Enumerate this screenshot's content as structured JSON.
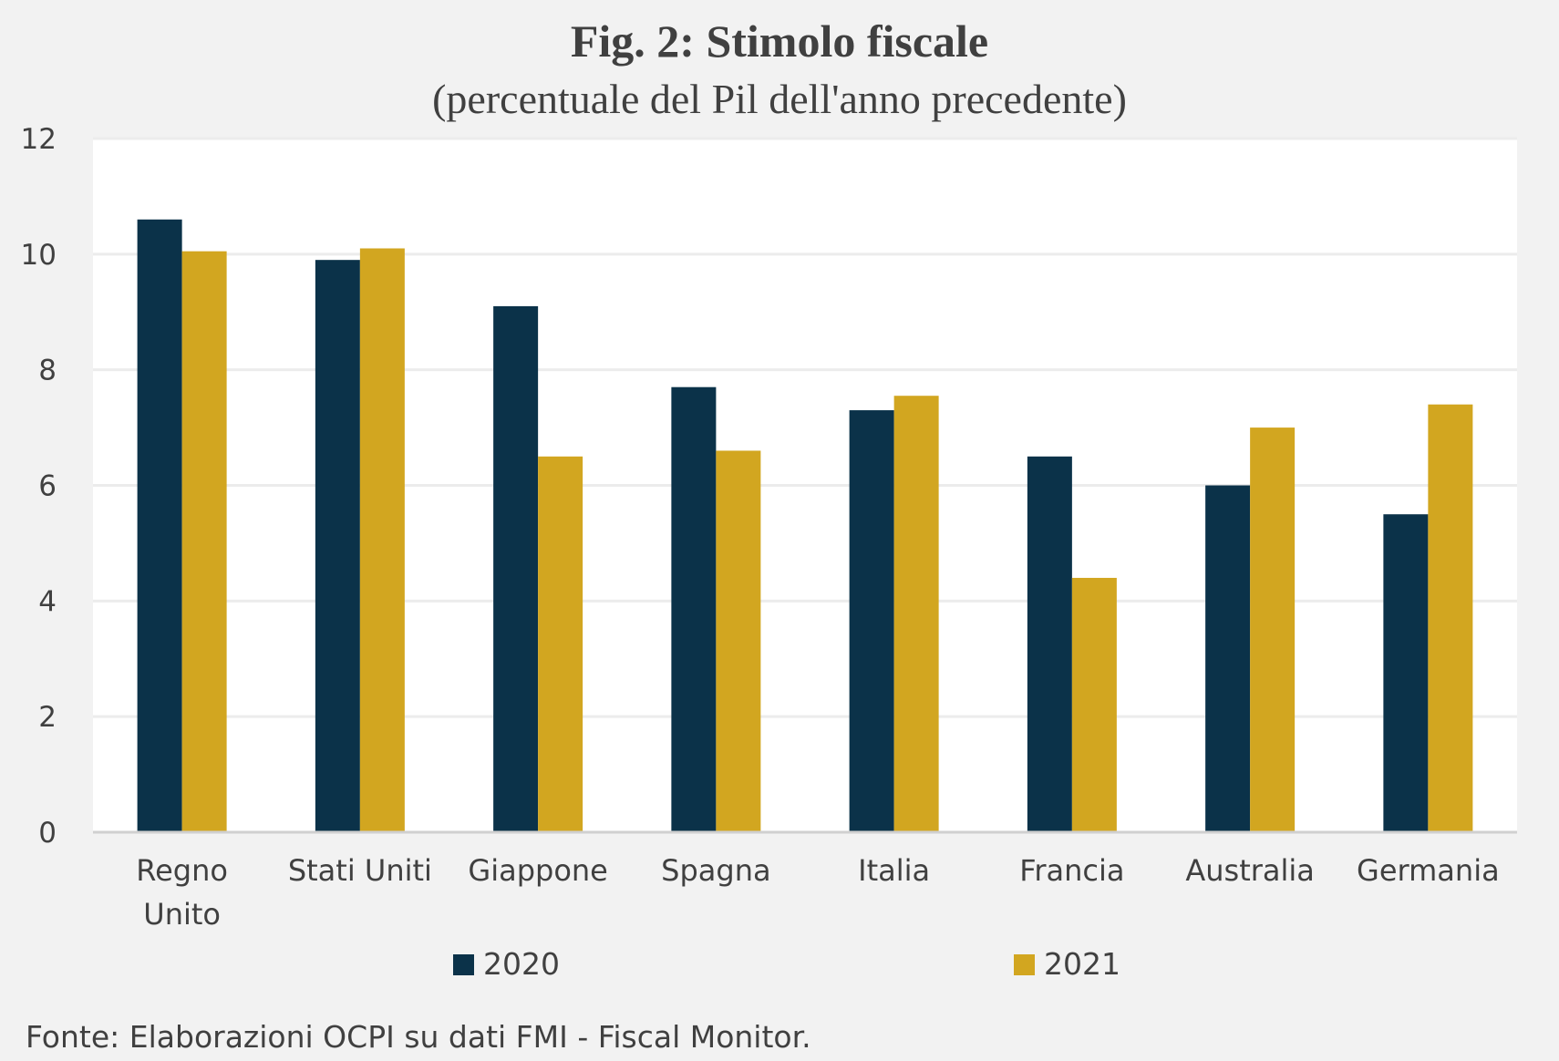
{
  "chart_data": {
    "type": "bar",
    "title": "Fig. 2: Stimolo fiscale",
    "subtitle": "(percentuale del Pil dell'anno precedente)",
    "categories": [
      "Regno Unito",
      "Stati Uniti",
      "Giappone",
      "Spagna",
      "Italia",
      "Francia",
      "Australia",
      "Germania"
    ],
    "series": [
      {
        "name": "2020",
        "color": "#0b3249",
        "values": [
          10.6,
          9.9,
          9.1,
          7.7,
          7.3,
          6.5,
          6.0,
          5.5
        ]
      },
      {
        "name": "2021",
        "color": "#d2a620",
        "values": [
          10.05,
          10.1,
          6.5,
          6.6,
          7.55,
          4.4,
          7.0,
          7.4
        ]
      }
    ],
    "yticks": [
      "0",
      "2",
      "4",
      "6",
      "8",
      "10",
      "12"
    ],
    "ylim": [
      0,
      12
    ],
    "grid": true,
    "legend_position": "bottom"
  },
  "source": "Fonte: Elaborazioni OCPI su dati FMI - Fiscal Monitor."
}
